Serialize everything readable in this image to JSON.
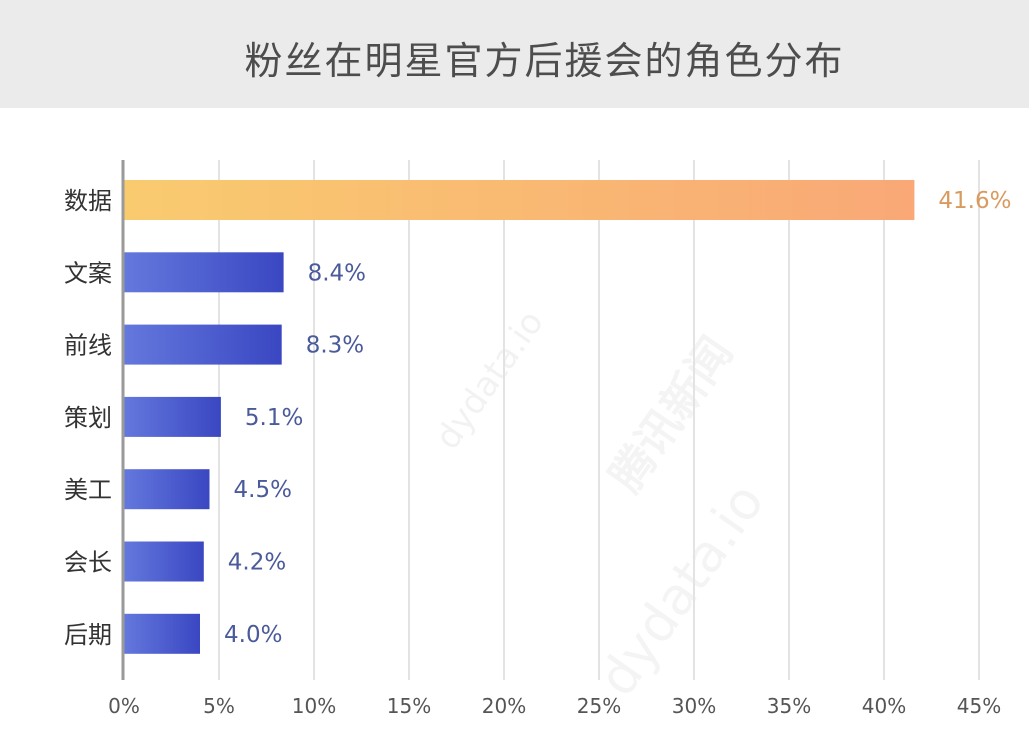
{
  "page": {
    "title": "粉丝在明星官方后援会的角色分布"
  },
  "chart_data": {
    "type": "bar",
    "orientation": "horizontal",
    "title": "粉丝在明星官方后援会的角色分布",
    "categories": [
      "数据",
      "文案",
      "前线",
      "策划",
      "美工",
      "会长",
      "后期"
    ],
    "values": [
      41.6,
      8.4,
      8.3,
      5.1,
      4.5,
      4.2,
      4.0
    ],
    "value_labels": [
      "41.6%",
      "8.4%",
      "8.3%",
      "5.1%",
      "4.5%",
      "4.2%",
      "4.0%"
    ],
    "x_ticks": [
      "0%",
      "5%",
      "10%",
      "15%",
      "20%",
      "25%",
      "30%",
      "35%",
      "40%",
      "45%"
    ],
    "xlim": [
      0,
      45
    ],
    "grid": true,
    "colors": {
      "highlight_bar_start": "#f9cb6f",
      "highlight_bar_end": "#f9a876",
      "highlight_label": "#d99a5e",
      "bar_start": "#6478dd",
      "bar_end": "#3a47c2",
      "bar_label": "#4a5a9a",
      "tick_label": "#555555",
      "axis": "#9a9a9a",
      "grid": "#e3e3e3"
    }
  },
  "watermarks": [
    "dydata.io",
    "腾讯新闻"
  ]
}
